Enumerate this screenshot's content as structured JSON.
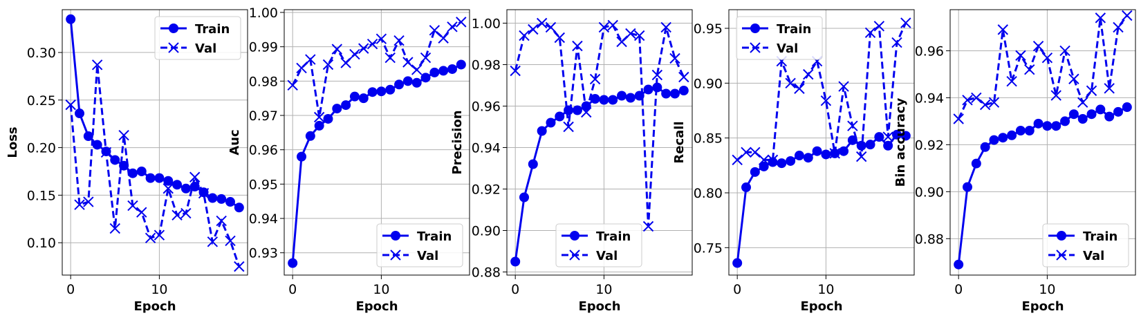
{
  "colors": {
    "series": "#0000ee",
    "grid": "#b0b0b0",
    "axis": "#000000"
  },
  "chart_data": [
    {
      "type": "line",
      "xlabel": "Epoch",
      "ylabel": "Loss",
      "xlim": [
        -0.95,
        19.95
      ],
      "ylim": [
        0.066,
        0.345
      ],
      "xticks": [
        0,
        10
      ],
      "yticks": [
        0.1,
        0.15,
        0.2,
        0.25,
        0.3
      ],
      "ytick_labels": [
        "0.10",
        "0.15",
        "0.20",
        "0.25",
        "0.30"
      ],
      "grid": true,
      "legend": "upper right",
      "x": [
        0,
        1,
        2,
        3,
        4,
        5,
        6,
        7,
        8,
        9,
        10,
        11,
        12,
        13,
        14,
        15,
        16,
        17,
        18,
        19
      ],
      "series": [
        {
          "name": "Train",
          "style": "solid-circle",
          "values": [
            0.335,
            0.236,
            0.212,
            0.203,
            0.196,
            0.187,
            0.181,
            0.173,
            0.175,
            0.168,
            0.168,
            0.165,
            0.161,
            0.157,
            0.159,
            0.153,
            0.147,
            0.146,
            0.143,
            0.137
          ]
        },
        {
          "name": "Val",
          "style": "dashed-x",
          "values": [
            0.245,
            0.14,
            0.143,
            0.287,
            0.195,
            0.115,
            0.213,
            0.139,
            0.132,
            0.105,
            0.108,
            0.157,
            0.129,
            0.131,
            0.169,
            0.152,
            0.101,
            0.123,
            0.102,
            0.075
          ]
        }
      ]
    },
    {
      "type": "line",
      "xlabel": "Epoch",
      "ylabel": "Auc",
      "xlim": [
        -0.95,
        19.95
      ],
      "ylim": [
        0.9235,
        1.0008
      ],
      "xticks": [
        0,
        10
      ],
      "yticks": [
        0.93,
        0.94,
        0.95,
        0.96,
        0.97,
        0.98,
        0.99,
        1.0
      ],
      "ytick_labels": [
        "0.93",
        "0.94",
        "0.95",
        "0.96",
        "0.97",
        "0.98",
        "0.99",
        "1.00"
      ],
      "grid": true,
      "legend": "lower right",
      "x": [
        0,
        1,
        2,
        3,
        4,
        5,
        6,
        7,
        8,
        9,
        10,
        11,
        12,
        13,
        14,
        15,
        16,
        17,
        18,
        19
      ],
      "series": [
        {
          "name": "Train",
          "style": "solid-circle",
          "values": [
            0.927,
            0.958,
            0.964,
            0.967,
            0.969,
            0.972,
            0.973,
            0.9755,
            0.975,
            0.9768,
            0.977,
            0.9775,
            0.979,
            0.98,
            0.9795,
            0.981,
            0.9825,
            0.983,
            0.9835,
            0.9848
          ]
        },
        {
          "name": "Val",
          "style": "dashed-x",
          "values": [
            0.9788,
            0.9838,
            0.9863,
            0.9695,
            0.9848,
            0.9893,
            0.9853,
            0.9878,
            0.9895,
            0.9908,
            0.9923,
            0.9868,
            0.9918,
            0.9855,
            0.9833,
            0.9868,
            0.9948,
            0.9925,
            0.9958,
            0.9972
          ]
        }
      ]
    },
    {
      "type": "line",
      "xlabel": "Epoch",
      "ylabel": "Precision",
      "xlim": [
        -0.95,
        19.95
      ],
      "ylim": [
        0.8785,
        1.0065
      ],
      "xticks": [
        0,
        10
      ],
      "yticks": [
        0.88,
        0.9,
        0.92,
        0.94,
        0.96,
        0.98,
        1.0
      ],
      "ytick_labels": [
        "0.88",
        "0.90",
        "0.92",
        "0.94",
        "0.96",
        "0.98",
        "1.00"
      ],
      "grid": true,
      "legend": "lower center",
      "x": [
        0,
        1,
        2,
        3,
        4,
        5,
        6,
        7,
        8,
        9,
        10,
        11,
        12,
        13,
        14,
        15,
        16,
        17,
        18,
        19
      ],
      "series": [
        {
          "name": "Train",
          "style": "solid-circle",
          "values": [
            0.885,
            0.916,
            0.932,
            0.948,
            0.952,
            0.955,
            0.958,
            0.958,
            0.96,
            0.9635,
            0.963,
            0.963,
            0.965,
            0.964,
            0.965,
            0.968,
            0.969,
            0.966,
            0.966,
            0.9675
          ]
        },
        {
          "name": "Val",
          "style": "dashed-x",
          "values": [
            0.977,
            0.994,
            0.997,
            1.0,
            0.998,
            0.993,
            0.95,
            0.989,
            0.957,
            0.973,
            0.998,
            0.999,
            0.991,
            0.995,
            0.994,
            0.902,
            0.975,
            0.998,
            0.983,
            0.974
          ]
        }
      ]
    },
    {
      "type": "line",
      "xlabel": "Epoch",
      "ylabel": "Recall",
      "xlim": [
        -0.95,
        19.95
      ],
      "ylim": [
        0.725,
        0.967
      ],
      "xticks": [
        0,
        10
      ],
      "yticks": [
        0.75,
        0.8,
        0.85,
        0.9,
        0.95
      ],
      "ytick_labels": [
        "0.75",
        "0.80",
        "0.85",
        "0.90",
        "0.95"
      ],
      "grid": true,
      "legend": "upper left",
      "x": [
        0,
        1,
        2,
        3,
        4,
        5,
        6,
        7,
        8,
        9,
        10,
        11,
        12,
        13,
        14,
        15,
        16,
        17,
        18,
        19
      ],
      "series": [
        {
          "name": "Train",
          "style": "solid-circle",
          "values": [
            0.736,
            0.805,
            0.819,
            0.824,
            0.828,
            0.827,
            0.829,
            0.834,
            0.832,
            0.838,
            0.835,
            0.836,
            0.838,
            0.848,
            0.843,
            0.844,
            0.851,
            0.843,
            0.853,
            0.852
          ]
        },
        {
          "name": "Val",
          "style": "dashed-x",
          "values": [
            0.83,
            0.837,
            0.837,
            0.83,
            0.83,
            0.92,
            0.9,
            0.895,
            0.908,
            0.92,
            0.884,
            0.836,
            0.897,
            0.861,
            0.833,
            0.946,
            0.952,
            0.851,
            0.937,
            0.955
          ]
        }
      ]
    },
    {
      "type": "line",
      "xlabel": "Epoch",
      "ylabel": "Bin accuracy",
      "xlim": [
        -0.95,
        19.95
      ],
      "ylim": [
        0.8645,
        0.9775
      ],
      "xticks": [
        0,
        10
      ],
      "yticks": [
        0.88,
        0.9,
        0.92,
        0.94,
        0.96
      ],
      "ytick_labels": [
        "0.88",
        "0.90",
        "0.92",
        "0.94",
        "0.96"
      ],
      "grid": true,
      "legend": "lower right",
      "x": [
        0,
        1,
        2,
        3,
        4,
        5,
        6,
        7,
        8,
        9,
        10,
        11,
        12,
        13,
        14,
        15,
        16,
        17,
        18,
        19
      ],
      "series": [
        {
          "name": "Train",
          "style": "solid-circle",
          "values": [
            0.869,
            0.902,
            0.912,
            0.919,
            0.922,
            0.923,
            0.924,
            0.926,
            0.926,
            0.929,
            0.928,
            0.928,
            0.93,
            0.933,
            0.931,
            0.933,
            0.935,
            0.932,
            0.934,
            0.936
          ]
        },
        {
          "name": "Val",
          "style": "dashed-x",
          "values": [
            0.931,
            0.939,
            0.94,
            0.937,
            0.938,
            0.969,
            0.947,
            0.958,
            0.952,
            0.962,
            0.957,
            0.941,
            0.96,
            0.948,
            0.938,
            0.943,
            0.974,
            0.944,
            0.97,
            0.975
          ]
        }
      ]
    }
  ]
}
